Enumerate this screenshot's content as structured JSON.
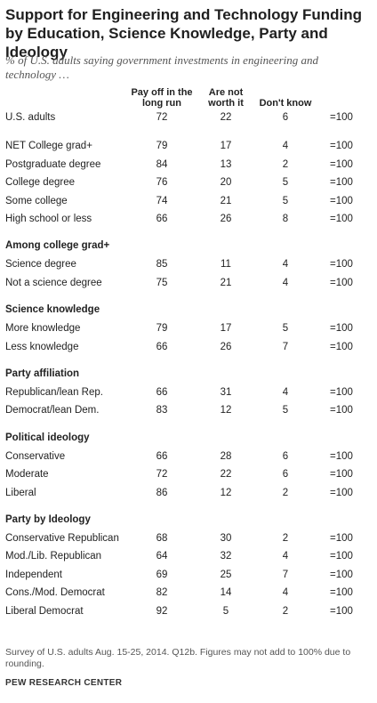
{
  "title": "Support for Engineering and Technology Funding by Education, Science Knowledge, Party and Ideology",
  "subtitle": "% of U.S. adults saying government investments in engineering and technology …",
  "footnote": "Survey of U.S. adults Aug. 15-25, 2014. Q12b. Figures may not add to 100% due to rounding.",
  "source": "PEW RESEARCH CENTER",
  "chart_data": {
    "type": "table",
    "title": "Support for Engineering and Technology Funding by Education, Science Knowledge, Party and Ideology",
    "columns": [
      "Pay off in the long run",
      "Are not worth it",
      "Don't know",
      ""
    ],
    "total_label": "=100",
    "sections": [
      {
        "heading": "",
        "rows": [
          {
            "label": "U.S. adults",
            "values": [
              72,
              22,
              6
            ]
          }
        ]
      },
      {
        "heading": "",
        "rows": [
          {
            "label": "NET College grad+",
            "values": [
              79,
              17,
              4
            ]
          },
          {
            "label": " Postgraduate degree",
            "values": [
              84,
              13,
              2
            ]
          },
          {
            "label": " College degree",
            "values": [
              76,
              20,
              5
            ]
          },
          {
            "label": "Some college",
            "values": [
              74,
              21,
              5
            ]
          },
          {
            "label": "High school or less",
            "values": [
              66,
              26,
              8
            ]
          }
        ]
      },
      {
        "heading": "Among college grad+",
        "rows": [
          {
            "label": "Science degree",
            "values": [
              85,
              11,
              4
            ]
          },
          {
            "label": "Not a science degree",
            "values": [
              75,
              21,
              4
            ]
          }
        ]
      },
      {
        "heading": "Science knowledge",
        "rows": [
          {
            "label": "More knowledge",
            "values": [
              79,
              17,
              5
            ]
          },
          {
            "label": "Less knowledge",
            "values": [
              66,
              26,
              7
            ]
          }
        ]
      },
      {
        "heading": "Party affiliation",
        "rows": [
          {
            "label": "Republican/lean Rep.",
            "values": [
              66,
              31,
              4
            ]
          },
          {
            "label": "Democrat/lean Dem.",
            "values": [
              83,
              12,
              5
            ]
          }
        ]
      },
      {
        "heading": "Political ideology",
        "rows": [
          {
            "label": "Conservative",
            "values": [
              66,
              28,
              6
            ]
          },
          {
            "label": "Moderate",
            "values": [
              72,
              22,
              6
            ]
          },
          {
            "label": "Liberal",
            "values": [
              86,
              12,
              2
            ]
          }
        ]
      },
      {
        "heading": "Party by Ideology",
        "rows": [
          {
            "label": "Conservative Republican",
            "values": [
              68,
              30,
              2
            ]
          },
          {
            "label": "Mod./Lib. Republican",
            "values": [
              64,
              32,
              4
            ]
          },
          {
            "label": "Independent",
            "values": [
              69,
              25,
              7
            ]
          },
          {
            "label": "Cons./Mod. Democrat",
            "values": [
              82,
              14,
              4
            ]
          },
          {
            "label": "Liberal Democrat",
            "values": [
              92,
              5,
              2
            ]
          }
        ]
      }
    ]
  }
}
